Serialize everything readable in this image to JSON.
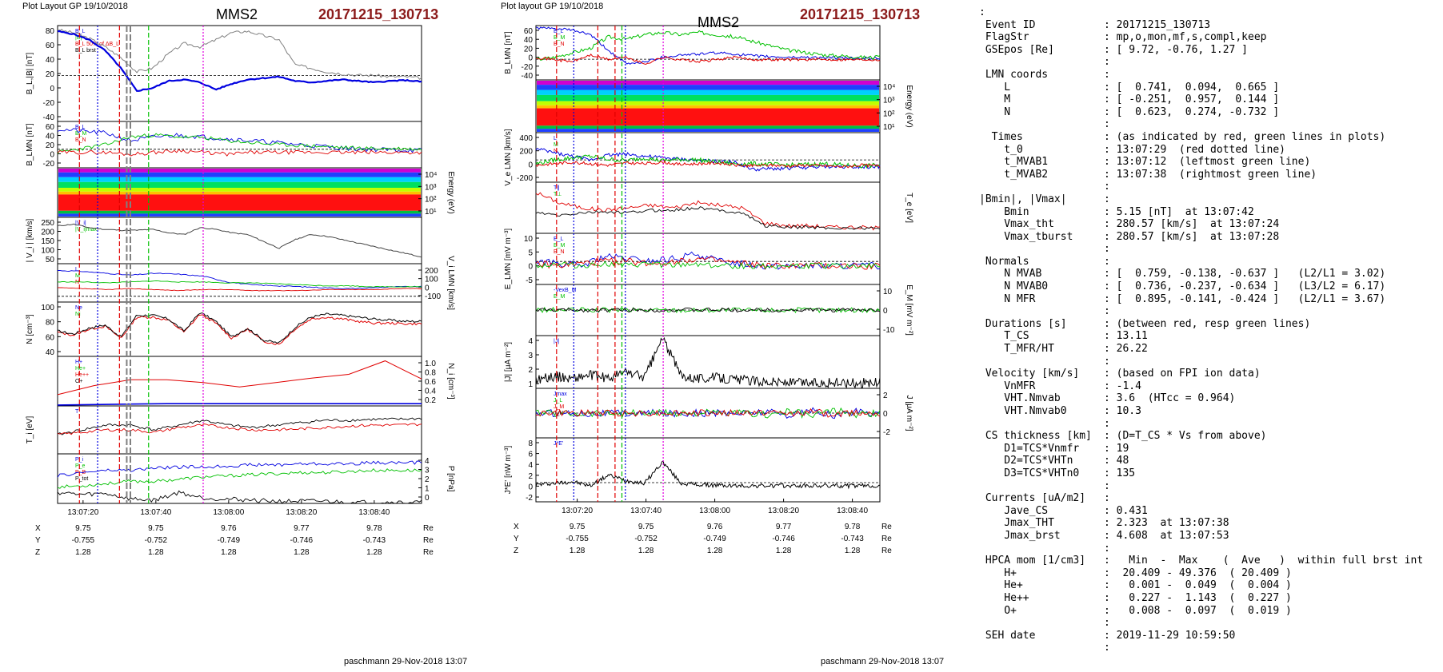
{
  "left_plot": {
    "header": "Plot Layout GP 19/10/2018",
    "spacecraft": "MMS2",
    "event": "20171215_130713",
    "footer": "paschmann 29-Nov-2018 13:07",
    "time_ticks": [
      "13:07:20",
      "13:07:40",
      "13:08:00",
      "13:08:20",
      "13:08:40"
    ],
    "position": {
      "labels": [
        "X",
        "Y",
        "Z"
      ],
      "unit": "Re",
      "rows": [
        [
          "9.75",
          "9.75",
          "9.76",
          "9.77",
          "9.78"
        ],
        [
          "-0.755",
          "-0.752",
          "-0.749",
          "-0.746",
          "-0.743"
        ],
        [
          "1.28",
          "1.28",
          "1.28",
          "1.28",
          "1.28"
        ]
      ]
    },
    "panels": [
      {
        "ylabel": "B_L,|B| [nT]",
        "ticks": [
          "80",
          "60",
          "40",
          "20",
          "0",
          "-20",
          "-40"
        ],
        "legend": [
          "B_L",
          "|B|",
          "B_L 50% of ΔB_L",
          "B_L brst"
        ]
      },
      {
        "ylabel": "B_LMN [nT]",
        "ticks": [
          "60",
          "40",
          "20",
          "0",
          "-20"
        ],
        "legend": [
          "B_L",
          "B_M",
          "B_N"
        ]
      },
      {
        "ylabel_right": "Energy (eV)",
        "ticks_right": [
          "10⁴",
          "10³",
          "10²",
          "10¹"
        ]
      },
      {
        "ylabel": "| V_i | [km/s]",
        "ticks": [
          "250",
          "200",
          "150",
          "100",
          "50"
        ],
        "legend": [
          "|V_i|",
          "|V_i|max"
        ]
      },
      {
        "ylabel_right": "V_i LMN [km/s]",
        "ticks_right": [
          "200",
          "100",
          "0",
          "-100"
        ],
        "legend": [
          "L",
          "M",
          "N"
        ]
      },
      {
        "ylabel": "N [cm⁻³]",
        "ticks": [
          "100",
          "80",
          "60",
          "40"
        ],
        "legend": [
          "Ne",
          "Ni"
        ]
      },
      {
        "ylabel_right": "N_i [cm⁻³]",
        "ticks_right": [
          "1.0",
          "0.8",
          "0.6",
          "0.4",
          "0.2"
        ],
        "legend": [
          "H+",
          "He+",
          "He++",
          "O+"
        ]
      },
      {
        "ylabel": "T_i [eV]",
        "legend": [
          "T"
        ]
      },
      {
        "ylabel_right": "P [nPa]",
        "ticks_right": [
          "4",
          "3",
          "2",
          "1",
          "0"
        ],
        "legend": [
          "P_i",
          "P_e",
          "P_B",
          "P_tot"
        ]
      }
    ]
  },
  "mid_plot": {
    "header": "Plot layout GP 19/10/2018",
    "spacecraft": "MMS2",
    "event": "20171215_130713",
    "footer": "paschmann 29-Nov-2018 13:07",
    "time_ticks": [
      "13:07:20",
      "13:07:40",
      "13:08:00",
      "13:08:20",
      "13:08:40"
    ],
    "position": {
      "labels": [
        "X",
        "Y",
        "Z"
      ],
      "unit": "Re",
      "rows": [
        [
          "9.75",
          "9.75",
          "9.76",
          "9.77",
          "9.78"
        ],
        [
          "-0.755",
          "-0.752",
          "-0.749",
          "-0.746",
          "-0.743"
        ],
        [
          "1.28",
          "1.28",
          "1.28",
          "1.28",
          "1.28"
        ]
      ]
    },
    "panels": [
      {
        "ylabel": "B_LMN [nT]",
        "ticks": [
          "60",
          "40",
          "20",
          "0",
          "-20",
          "-40"
        ],
        "legend": [
          "B_L",
          "B_M",
          "B_N"
        ]
      },
      {
        "ylabel_right": "Energy (eV)",
        "ticks_right": [
          "10⁴",
          "10³",
          "10²",
          "10¹"
        ]
      },
      {
        "ylabel": "V_e LMN [km/s]",
        "ticks": [
          "400",
          "200",
          "0",
          "-200"
        ],
        "legend": [
          "L",
          "M",
          "N"
        ]
      },
      {
        "ylabel_right": "T_e [eV]",
        "legend": [
          "T∥",
          "T⊥"
        ]
      },
      {
        "ylabel": "E_LMN [mV m⁻³]",
        "ticks": [
          "10",
          "5",
          "0",
          "-5"
        ],
        "legend": [
          "E_L",
          "E_M",
          "E_N"
        ]
      },
      {
        "ylabel_right": "E_M [mV m⁻²]",
        "ticks_right": [
          "10",
          "0",
          "-10"
        ],
        "legend": [
          "-VexB_M",
          "E_M"
        ]
      },
      {
        "ylabel": "|J| [μA m⁻²]",
        "ticks": [
          "4",
          "3",
          "2",
          "1"
        ],
        "legend": [
          "|J|"
        ]
      },
      {
        "ylabel_right": "J [μA m⁻²]",
        "ticks_right": [
          "2",
          "0",
          "-2"
        ],
        "legend": [
          "Jmax",
          "J_L",
          "J_M",
          "J_N"
        ]
      },
      {
        "ylabel": "J*E' [nW m⁻³]",
        "ticks": [
          "8",
          "6",
          "4",
          "2",
          "0",
          "-2"
        ],
        "legend": [
          "J*E'"
        ]
      }
    ]
  },
  "info_rows": [
    {
      "k": ":",
      "v": ""
    },
    {
      "k": " Event ID",
      "v": ": 20171215_130713"
    },
    {
      "k": " FlagStr",
      "v": ": mp,o,mon,mf,s,compl,keep"
    },
    {
      "k": " GSEpos [Re]",
      "v": ": [ 9.72, -0.76, 1.27 ]"
    },
    {
      "k": "",
      "v": ":"
    },
    {
      "k": " LMN coords",
      "v": ":"
    },
    {
      "k": "    L",
      "v": ": [  0.741,  0.094,  0.665 ]"
    },
    {
      "k": "    M",
      "v": ": [ -0.251,  0.957,  0.144 ]"
    },
    {
      "k": "    N",
      "v": ": [  0.623,  0.274, -0.732 ]"
    },
    {
      "k": "",
      "v": ":"
    },
    {
      "k": "  Times",
      "v": ": (as indicated by red, green lines in plots)"
    },
    {
      "k": "    t_0",
      "v": ": 13:07:29  (red dotted line)"
    },
    {
      "k": "    t_MVAB1",
      "v": ": 13:07:12  (leftmost green line)"
    },
    {
      "k": "    t_MVAB2",
      "v": ": 13:07:38  (rightmost green line)"
    },
    {
      "k": "",
      "v": ":"
    },
    {
      "k": "|Bmin|, |Vmax|",
      "v": ":"
    },
    {
      "k": "    Bmin",
      "v": ": 5.15 [nT]  at 13:07:42"
    },
    {
      "k": "    Vmax_tht",
      "v": ": 280.57 [km/s]  at 13:07:24"
    },
    {
      "k": "    Vmax_tburst",
      "v": ": 280.57 [km/s]  at 13:07:28"
    },
    {
      "k": "",
      "v": ":"
    },
    {
      "k": " Normals",
      "v": ":"
    },
    {
      "k": "    N MVAB",
      "v": ": [  0.759, -0.138, -0.637 ]   (L2/L1 = 3.02)"
    },
    {
      "k": "    N MVAB0",
      "v": ": [  0.736, -0.237, -0.634 ]   (L3/L2 = 6.17)"
    },
    {
      "k": "    N MFR",
      "v": ": [  0.895, -0.141, -0.424 ]   (L2/L1 = 3.67)"
    },
    {
      "k": "",
      "v": ":"
    },
    {
      "k": " Durations [s]",
      "v": ": (between red, resp green lines)"
    },
    {
      "k": "    T_CS",
      "v": ": 13.11"
    },
    {
      "k": "    T_MFR/HT",
      "v": ": 26.22"
    },
    {
      "k": "",
      "v": ":"
    },
    {
      "k": " Velocity [km/s]",
      "v": ": (based on FPI ion data)"
    },
    {
      "k": "    VnMFR",
      "v": ": -1.4"
    },
    {
      "k": "    VHT.Nmvab",
      "v": ": 3.6  (HTcc = 0.964)"
    },
    {
      "k": "    VHT.Nmvab0",
      "v": ": 10.3"
    },
    {
      "k": "",
      "v": ":"
    },
    {
      "k": " CS thickness [km]",
      "v": ": (D=T_CS * Vs from above)"
    },
    {
      "k": "    D1=TCS*Vnmfr",
      "v": ": 19"
    },
    {
      "k": "    D2=TCS*VHTn",
      "v": ": 48"
    },
    {
      "k": "    D3=TCS*VHTn0",
      "v": ": 135"
    },
    {
      "k": "",
      "v": ":"
    },
    {
      "k": " Currents [uA/m2]",
      "v": ":"
    },
    {
      "k": "    Jave_CS",
      "v": ": 0.431"
    },
    {
      "k": "    Jmax_THT",
      "v": ": 2.323  at 13:07:38"
    },
    {
      "k": "    Jmax_brst",
      "v": ": 4.608  at 13:07:53"
    },
    {
      "k": "",
      "v": ":"
    },
    {
      "k": " HPCA mom [1/cm3]",
      "v": ":   Min  -  Max    (  Ave   )  within full brst int"
    },
    {
      "k": "    H+",
      "v": ":  20.409 - 49.376  ( 20.409 )"
    },
    {
      "k": "    He+",
      "v": ":   0.001 -  0.049  (  0.004 )"
    },
    {
      "k": "    He++",
      "v": ":   0.227 -  1.143  (  0.227 )"
    },
    {
      "k": "    O+",
      "v": ":   0.008 -  0.097  (  0.019 )"
    },
    {
      "k": "",
      "v": ":"
    },
    {
      "k": " SEH date",
      "v": ": 2019-11-29 10:59:50"
    },
    {
      "k": "",
      "v": ":"
    }
  ],
  "colors": {
    "red": "#e00000",
    "green": "#00c000",
    "blue": "#0000e0",
    "black": "#000000",
    "grey": "#808080",
    "magenta": "#e000e0",
    "event": "#8b1a1a"
  },
  "chart_data": [
    {
      "type": "line",
      "title": "MMS2 20171215_130713",
      "x_ticks": [
        "13:07:20",
        "13:07:40",
        "13:08:00",
        "13:08:20",
        "13:08:40"
      ],
      "panels": [
        {
          "name": "B_L,|B|",
          "ylim": [
            -55,
            80
          ],
          "series": [
            {
              "name": "B_L",
              "values": [
                72,
                68,
                60,
                45,
                20,
                -12,
                -8,
                2,
                4,
                0,
                -10,
                -2,
                4,
                6,
                8,
                2,
                0,
                2,
                4,
                2,
                0,
                2,
                3,
                1
              ]
            },
            {
              "name": "|B|",
              "values": [
                74,
                70,
                62,
                50,
                35,
                15,
                20,
                40,
                55,
                50,
                60,
                70,
                72,
                66,
                60,
                25,
                20,
                15,
                12,
                10,
                10,
                8,
                8,
                6
              ]
            }
          ]
        },
        {
          "name": "|V_i|",
          "ylim": [
            20,
            290
          ],
          "series": [
            {
              "name": "|V_i|",
              "values": [
                240,
                250,
                230,
                220,
                215,
                215,
                220,
                200,
                190,
                230,
                220,
                200,
                190,
                150,
                110,
                160,
                190,
                180,
                160,
                140,
                120,
                100,
                80,
                60
              ]
            }
          ]
        },
        {
          "name": "N",
          "ylim": [
            30,
            120
          ],
          "series": [
            {
              "name": "Ne",
              "values": [
                70,
                65,
                75,
                80,
                60,
                95,
                95,
                90,
                70,
                100,
                85,
                60,
                75,
                55,
                50,
                75,
                92,
                95,
                92,
                88,
                85,
                85,
                84,
                84
              ]
            },
            {
              "name": "Ni",
              "values": [
                72,
                67,
                77,
                82,
                62,
                98,
                98,
                92,
                72,
                103,
                88,
                62,
                77,
                57,
                52,
                78,
                95,
                100,
                98,
                95,
                92,
                90,
                88,
                88
              ]
            }
          ]
        },
        {
          "name": "N_i",
          "ylim": [
            0,
            1.1
          ],
          "series": [
            {
              "name": "He++",
              "values": [
                0.25,
                0.45,
                0.58,
                0.58,
                0.52,
                0.42,
                0.52,
                0.62,
                0.7,
                1.0,
                0.6
              ]
            },
            {
              "name": "O+",
              "values": [
                0.02,
                0.03,
                0.04,
                0.05,
                0.05,
                0.05,
                0.05,
                0.05,
                0.05,
                0.05,
                0.05
              ]
            }
          ]
        }
      ]
    },
    {
      "type": "line",
      "title": "MMS2 20171215_130713",
      "x_ticks": [
        "13:07:20",
        "13:07:40",
        "13:08:00",
        "13:08:20",
        "13:08:40"
      ],
      "panels": [
        {
          "name": "B_LMN",
          "ylim": [
            -45,
            75
          ],
          "series": [
            {
              "name": "B_L",
              "values": [
                70,
                68,
                65,
                55,
                20,
                -10,
                -5,
                5,
                10,
                12,
                15,
                12,
                8,
                6,
                5,
                5,
                4,
                3,
                3,
                3
              ]
            },
            {
              "name": "B_M",
              "values": [
                0,
                5,
                15,
                25,
                50,
                45,
                55,
                60,
                55,
                60,
                55,
                50,
                40,
                30,
                20,
                15,
                10,
                8,
                5,
                5
              ]
            },
            {
              "name": "B_N",
              "values": [
                5,
                0,
                -5,
                10,
                0,
                5,
                -10,
                5,
                0,
                -5,
                0,
                5,
                0,
                0,
                0,
                0,
                0,
                0,
                0,
                0
              ]
            }
          ]
        },
        {
          "name": "V_e LMN",
          "ylim": [
            -250,
            420
          ],
          "series": [
            {
              "name": "L",
              "values": [
                200,
                150,
                100,
                50,
                120,
                130,
                100,
                80,
                60,
                40,
                30,
                20,
                -80,
                -70,
                -60,
                -50,
                -40,
                -40,
                -40,
                -40
              ]
            },
            {
              "name": "M",
              "values": [
                0,
                50,
                80,
                100,
                60,
                40,
                80,
                40,
                60,
                50,
                20,
                0,
                0,
                -10,
                -20,
                -10,
                0,
                -20,
                -30,
                -20
              ]
            },
            {
              "name": "N",
              "values": [
                -20,
                0,
                20,
                0,
                -20,
                10,
                0,
                20,
                -10,
                0,
                10,
                -20,
                -30,
                -20,
                -30,
                -20,
                -30,
                -40,
                -20,
                -30
              ]
            }
          ]
        },
        {
          "name": "|J|",
          "ylim": [
            0,
            4.8
          ],
          "series": [
            {
              "name": "|J|",
              "values": [
                0.8,
                1.1,
                0.9,
                1.2,
                0.9,
                1.5,
                1.0,
                4.6,
                1.2,
                0.9,
                1.0,
                0.8,
                0.7,
                0.6,
                0.5,
                0.5,
                0.5,
                0.5,
                0.5,
                0.5
              ]
            }
          ]
        },
        {
          "name": "J*E'",
          "ylim": [
            -3,
            9
          ],
          "series": [
            {
              "name": "J*E'",
              "values": [
                0.2,
                0.5,
                0.8,
                0.0,
                2.0,
                1.0,
                0.5,
                4.5,
                0.5,
                0.2,
                0.1,
                0.0,
                0.0,
                0.0,
                0.0,
                0.0,
                0.0,
                0.0,
                0.0,
                0.0
              ]
            }
          ]
        }
      ]
    }
  ]
}
